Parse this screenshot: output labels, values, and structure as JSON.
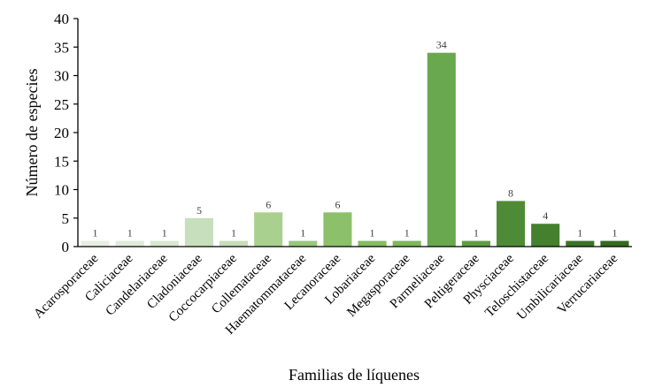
{
  "chart_data": {
    "type": "bar",
    "xlabel": "Familias de líquenes",
    "ylabel": "Número de especies",
    "ylim": [
      0,
      40
    ],
    "yticks": [
      0,
      5,
      10,
      15,
      20,
      25,
      30,
      35,
      40
    ],
    "grid": false,
    "legend": "none",
    "data_labels": true,
    "categories": [
      "Acarosporaceae",
      "Caliciaceae",
      "Candelariaceae",
      "Cladoniaceae",
      "Coccocarpiaceae",
      "Collemataceae",
      "Haematommataceae",
      "Lecanoraceae",
      "Lobariaceae",
      "Megasporaceae",
      "Parmeliaceae",
      "Peltigeraceae",
      "Physciaceae",
      "Teloschistaceae",
      "Umbilicariaceae",
      "Verrucariaceae"
    ],
    "values": [
      1,
      1,
      1,
      5,
      1,
      6,
      1,
      6,
      1,
      1,
      34,
      1,
      8,
      4,
      1,
      1
    ],
    "bar_colors": [
      "#e6efe1",
      "#e0ebda",
      "#d9e7d1",
      "#c7dfbc",
      "#c5ddb8",
      "#a9d08e",
      "#98c77c",
      "#8cc06b",
      "#85bb64",
      "#7fb75c",
      "#6aa84f",
      "#5e9e43",
      "#4f8b36",
      "#44802d",
      "#3c7326",
      "#356a1f"
    ],
    "axis_color": "#000000"
  }
}
